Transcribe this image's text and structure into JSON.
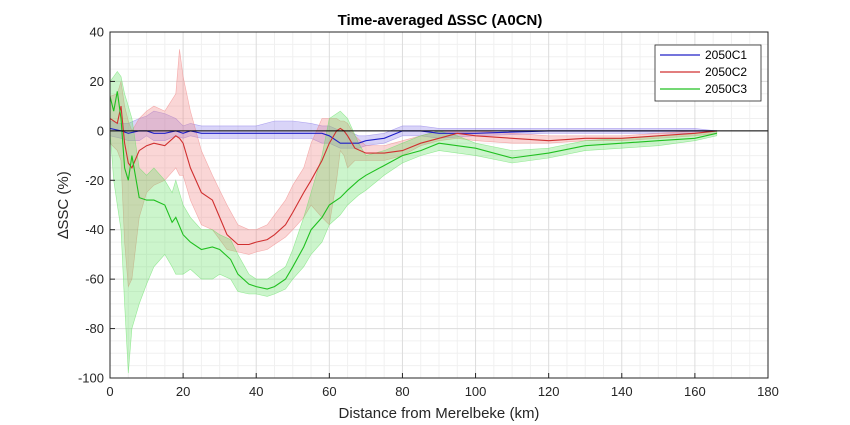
{
  "chart_data": {
    "type": "line",
    "title": "Time-averaged ∆SSC (A0CN)",
    "xlabel": "Distance from Merelbeke (km)",
    "ylabel": "∆SSC (%)",
    "xlim": [
      0,
      180
    ],
    "ylim": [
      -100,
      40
    ],
    "xticks": [
      0,
      20,
      40,
      60,
      80,
      100,
      120,
      140,
      160,
      180
    ],
    "yticks": [
      40,
      20,
      0,
      -20,
      -40,
      -60,
      -80,
      -100
    ],
    "grid": true,
    "minor_grid": true,
    "legend_position": "top-right",
    "zero_line": true,
    "series": [
      {
        "name": "2050C1",
        "color": "#2020c8",
        "band_color": "#8a7ae8",
        "x": [
          0,
          3,
          5,
          8,
          10,
          12,
          15,
          18,
          20,
          22,
          25,
          30,
          35,
          40,
          45,
          50,
          55,
          58,
          60,
          63,
          65,
          68,
          70,
          75,
          80,
          85,
          90,
          100,
          120,
          140,
          160,
          166
        ],
        "y": [
          1,
          0,
          -1,
          0,
          0,
          -1,
          -1,
          0,
          -1,
          0,
          -1,
          -1,
          -1,
          -1,
          -1,
          -1,
          -1,
          -1,
          -2,
          -5,
          -5,
          -5,
          -4,
          -3,
          0,
          0,
          -1,
          -1,
          0,
          0,
          0,
          0
        ],
        "lower": [
          -2,
          -3,
          -4,
          -4,
          -2,
          -4,
          -4,
          -2,
          -3,
          -2,
          -3,
          -3,
          -3,
          -3,
          -3,
          -3,
          -3,
          -5,
          -5,
          -7,
          -7,
          -7,
          -6,
          -5,
          -2,
          -2,
          -3,
          -2,
          -1,
          -1,
          -1,
          0
        ],
        "upper": [
          4,
          3,
          3,
          5,
          6,
          8,
          7,
          5,
          2,
          3,
          2,
          2,
          2,
          2,
          4,
          4,
          3,
          2,
          2,
          0,
          0,
          -2,
          -2,
          -1,
          2,
          2,
          1,
          1,
          1,
          1,
          1,
          0
        ]
      },
      {
        "name": "2050C2",
        "color": "#d03030",
        "band_color": "#f08080",
        "x": [
          0,
          2,
          3,
          4,
          5,
          6,
          8,
          10,
          12,
          15,
          18,
          19,
          20,
          22,
          25,
          28,
          30,
          32,
          35,
          38,
          40,
          43,
          45,
          48,
          50,
          53,
          55,
          58,
          60,
          62,
          63,
          64,
          65,
          67,
          70,
          75,
          80,
          85,
          90,
          95,
          100,
          110,
          120,
          130,
          140,
          150,
          160,
          166
        ],
        "y": [
          5,
          3,
          10,
          -5,
          -13,
          -15,
          -8,
          -6,
          -5,
          -6,
          -2,
          -3,
          -5,
          -15,
          -25,
          -28,
          -35,
          -42,
          -46,
          -46,
          -45,
          -44,
          -42,
          -38,
          -33,
          -25,
          -20,
          -12,
          -5,
          0,
          1,
          0,
          -2,
          -7,
          -9,
          -9,
          -8,
          -5,
          -3,
          -1,
          -2,
          -3,
          -4,
          -3,
          -3,
          -2,
          -1,
          0
        ],
        "lower": [
          -5,
          -8,
          -12,
          -45,
          -63,
          -60,
          -35,
          -25,
          -22,
          -20,
          -15,
          -18,
          -18,
          -28,
          -38,
          -40,
          -44,
          -48,
          -49,
          -50,
          -49,
          -48,
          -46,
          -43,
          -40,
          -35,
          -30,
          -35,
          -38,
          -20,
          -8,
          -10,
          -15,
          -12,
          -12,
          -12,
          -10,
          -6,
          -4,
          -3,
          -4,
          -5,
          -5,
          -4,
          -4,
          -3,
          -2,
          -1
        ],
        "upper": [
          14,
          15,
          20,
          10,
          4,
          0,
          5,
          8,
          10,
          8,
          15,
          33,
          22,
          8,
          -8,
          -18,
          -24,
          -30,
          -38,
          -40,
          -40,
          -38,
          -34,
          -28,
          -22,
          -15,
          -5,
          5,
          5,
          5,
          4,
          4,
          3,
          -2,
          -6,
          -6,
          -4,
          -2,
          0,
          0,
          0,
          -1,
          -2,
          -2,
          -2,
          -1,
          0,
          0
        ]
      },
      {
        "name": "2050C3",
        "color": "#20c020",
        "band_color": "#60e060",
        "x": [
          0,
          1,
          2,
          3,
          4,
          5,
          6,
          8,
          10,
          12,
          15,
          17,
          18,
          20,
          22,
          25,
          28,
          30,
          33,
          35,
          38,
          40,
          43,
          45,
          48,
          50,
          53,
          55,
          58,
          60,
          63,
          65,
          68,
          70,
          75,
          80,
          85,
          90,
          95,
          100,
          110,
          120,
          130,
          140,
          150,
          160,
          166
        ],
        "y": [
          14,
          8,
          16,
          5,
          -15,
          -20,
          -10,
          -27,
          -28,
          -28,
          -30,
          -37,
          -35,
          -42,
          -45,
          -48,
          -47,
          -48,
          -52,
          -58,
          -62,
          -63,
          -64,
          -63,
          -60,
          -55,
          -47,
          -40,
          -35,
          -30,
          -27,
          -24,
          -20,
          -18,
          -14,
          -10,
          -8,
          -5,
          -6,
          -7,
          -11,
          -9,
          -6,
          -5,
          -4,
          -3,
          -1
        ],
        "lower": [
          0,
          -20,
          -30,
          -40,
          -70,
          -98,
          -80,
          -70,
          -62,
          -55,
          -50,
          -55,
          -58,
          -58,
          -56,
          -60,
          -60,
          -58,
          -60,
          -65,
          -66,
          -66,
          -67,
          -66,
          -64,
          -60,
          -55,
          -50,
          -45,
          -38,
          -34,
          -30,
          -26,
          -24,
          -18,
          -13,
          -10,
          -8,
          -9,
          -10,
          -13,
          -11,
          -8,
          -7,
          -6,
          -4,
          -2
        ],
        "upper": [
          20,
          22,
          24,
          22,
          15,
          10,
          5,
          -15,
          -18,
          -15,
          -20,
          -25,
          -20,
          -30,
          -35,
          -40,
          -40,
          -42,
          -44,
          -50,
          -58,
          -60,
          -60,
          -58,
          -55,
          -48,
          -35,
          -25,
          -10,
          5,
          8,
          5,
          -5,
          -10,
          -8,
          -5,
          -2,
          0,
          -2,
          -5,
          -8,
          -7,
          -4,
          -3,
          -2,
          -1,
          0
        ]
      }
    ]
  }
}
